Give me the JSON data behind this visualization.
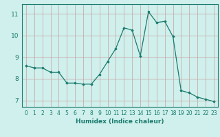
{
  "x": [
    0,
    1,
    2,
    3,
    4,
    5,
    6,
    7,
    8,
    9,
    10,
    11,
    12,
    13,
    14,
    15,
    16,
    17,
    18,
    19,
    20,
    21,
    22,
    23
  ],
  "y": [
    8.6,
    8.5,
    8.5,
    8.3,
    8.3,
    7.8,
    7.8,
    7.75,
    7.75,
    8.2,
    8.8,
    9.4,
    10.35,
    10.25,
    9.05,
    11.1,
    10.6,
    10.65,
    9.95,
    7.45,
    7.35,
    7.15,
    7.05,
    6.95
  ],
  "line_color": "#1a7a6e",
  "marker": "D",
  "marker_size": 1.8,
  "bg_color": "#cff0ec",
  "grid_color": "#c8a0a0",
  "xlabel": "Humidex (Indice chaleur)",
  "xlabel_fontsize": 6.5,
  "ylabel_ticks": [
    7,
    8,
    9,
    10,
    11
  ],
  "xlim": [
    -0.5,
    23.5
  ],
  "ylim": [
    6.7,
    11.45
  ],
  "ytick_fontsize": 6.5,
  "xtick_fontsize": 5.5
}
